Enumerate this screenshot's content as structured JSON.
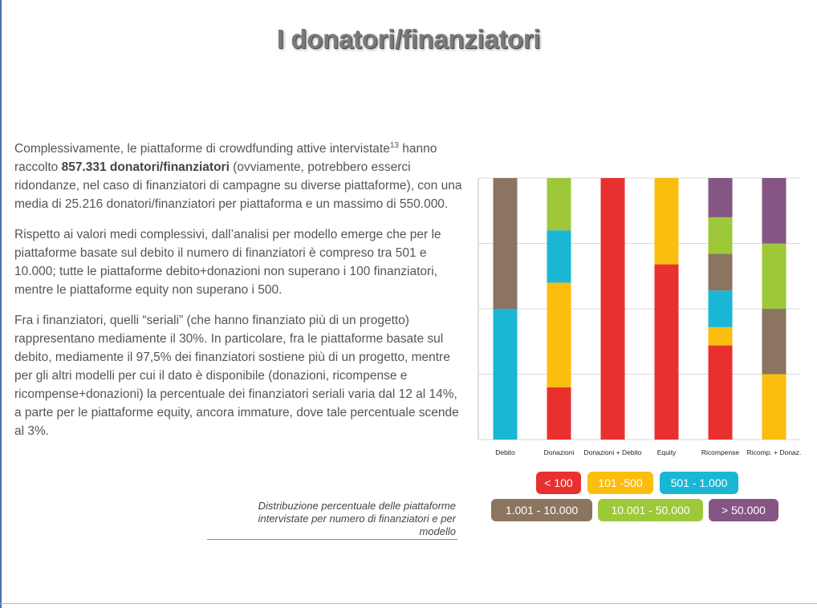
{
  "slide": {
    "title": "I donatori/finanziatori",
    "paragraph1": {
      "part1": "Complessivamente, le piattaforme di crowdfunding attive intervistate",
      "footnote": "13",
      "part2": " hanno raccolto ",
      "bold": "857.331 donatori/finanziatori",
      "part3": " (ovviamente, potrebbero esserci ridondanze, nel caso di finanziatori di campagne su diverse piattaforme), con una media di 25.216 donatori/finanziatori per piattaforma e un massimo di 550.000."
    },
    "paragraph2": "Rispetto ai valori medi complessivi, dall’analisi per modello emerge che per le piattaforme basate sul debito il numero di finanziatori è compreso tra 501 e 10.000; tutte le piattaforme debito+donazioni non superano i 100 finanziatori, mentre le piattaforme equity non superano i 500.",
    "paragraph3": "Fra i finanziatori, quelli “seriali” (che hanno finanziato più di un progetto) rappresentano mediamente il 30%. In particolare, fra le piattaforme basate sul debito, mediamente il 97,5% dei finanziatori sostiene più di un progetto, mentre per gli altri modelli per cui il dato è disponibile (donazioni, ricompense e ricompense+donazioni) la percentuale dei finanziatori seriali varia dal 12 al 14%, a parte per le piattaforme equity, ancora immature, dove tale percentuale scende al 3%.",
    "caption": "Distribuzione percentuale delle piattaforme intervistate per numero di finanziatori e per modello"
  },
  "colors": {
    "lt100": "#e8312f",
    "101-500": "#fbbd0e",
    "501-1000": "#19b7d4",
    "1001-10000": "#8b7560",
    "10001-50000": "#9dc83a",
    "gt50000": "#855584"
  },
  "chart_data": {
    "type": "bar",
    "stacked": true,
    "categories": [
      "Debito",
      "Donazioni",
      "Donazioni + Debito",
      "Equity",
      "Ricompense",
      "Ricomp. + Donaz."
    ],
    "ylim": [
      0,
      100
    ],
    "y_ticks_labeled": false,
    "gridlines": true,
    "series": [
      {
        "name": "< 100",
        "color_key": "lt100",
        "values": [
          0,
          20,
          100,
          67,
          36,
          0
        ]
      },
      {
        "name": "101 -500",
        "color_key": "101-500",
        "values": [
          0,
          40,
          0,
          33,
          7,
          25
        ]
      },
      {
        "name": "501 - 1.000",
        "color_key": "501-1000",
        "values": [
          50,
          20,
          0,
          0,
          14,
          0
        ]
      },
      {
        "name": "1.001 - 10.000",
        "color_key": "1001-10000",
        "values": [
          50,
          0,
          0,
          0,
          14,
          25
        ]
      },
      {
        "name": "10.001 - 50.000",
        "color_key": "10001-50000",
        "values": [
          0,
          20,
          0,
          0,
          14,
          25
        ]
      },
      {
        "name": "> 50.000",
        "color_key": "gt50000",
        "values": [
          0,
          0,
          0,
          0,
          15,
          25
        ]
      }
    ],
    "legend": {
      "placement": "bottom"
    }
  }
}
